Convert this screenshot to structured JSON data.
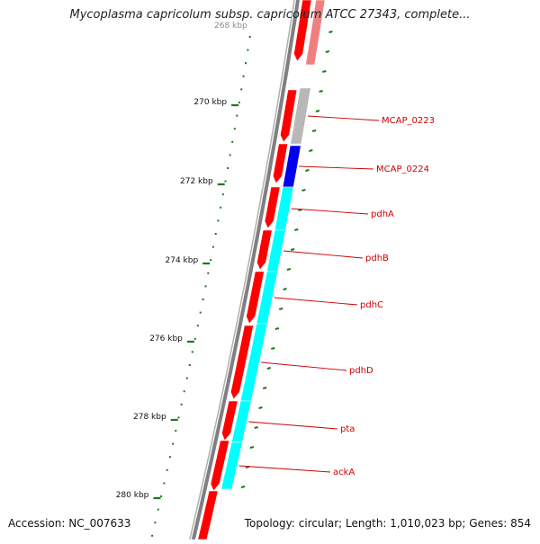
{
  "title": "Mycoplasma capricolum subsp. capricolum ATCC 27343, complete...",
  "footer": {
    "accession_label": "Accession:",
    "accession": "NC_007633",
    "topology_label": "Topology:",
    "topology": "circular",
    "length_label": "Length:",
    "length": "1,010,023 bp",
    "genes_label": "Genes:",
    "genes": "854"
  },
  "scale": {
    "unit": "kbp",
    "labels": [
      "270 kbp",
      "272 kbp",
      "274 kbp",
      "276 kbp",
      "278 kbp",
      "280 kbp"
    ],
    "truncated_top_label": "268 kbp"
  },
  "genes": [
    {
      "name": "MCAP_0223",
      "color": "#b8b8b8"
    },
    {
      "name": "MCAP_0224",
      "color": "#0000ee"
    },
    {
      "name": "pdhA",
      "color": "#00ffff"
    },
    {
      "name": "pdhB",
      "color": "#00ffff"
    },
    {
      "name": "pdhC",
      "color": "#00ffff"
    },
    {
      "name": "pdhD",
      "color": "#00ffff"
    },
    {
      "name": "pta",
      "color": "#00ffff"
    },
    {
      "name": "ackA",
      "color": "#00ffff"
    }
  ],
  "colors": {
    "backbone": "#808080",
    "forward_strand": "#ff0000",
    "unlabeled_feature": "#f08080",
    "tick": "#1a7a1a",
    "label_line": "#cc0000"
  }
}
